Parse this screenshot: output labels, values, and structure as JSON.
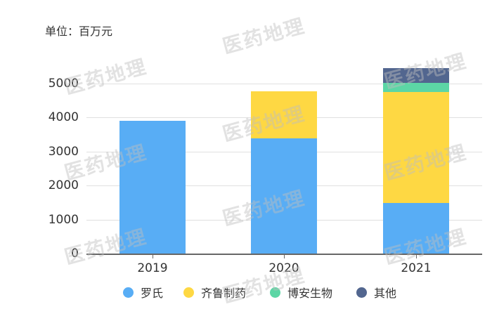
{
  "unit_label": "单位：百万元",
  "watermark": "医药地理",
  "y_ticks": [
    "5000",
    "4000",
    "3000",
    "2000",
    "1000",
    "0"
  ],
  "legend": [
    {
      "name": "罗氏",
      "color": "#58adf5"
    },
    {
      "name": "齐鲁制药",
      "color": "#fed843"
    },
    {
      "name": "博安生物",
      "color": "#5cd6a5"
    },
    {
      "name": "其他",
      "color": "#52668f"
    }
  ],
  "chart_data": {
    "type": "bar",
    "stacked": true,
    "title": "",
    "subtitle": "单位：百万元",
    "xlabel": "",
    "ylabel": "百万元",
    "categories": [
      "2019",
      "2020",
      "2021"
    ],
    "series": [
      {
        "name": "罗氏",
        "color": "#58adf5",
        "values": [
          3905,
          3390,
          1480
        ]
      },
      {
        "name": "齐鲁制药",
        "color": "#fed843",
        "values": [
          0,
          1385,
          3270
        ]
      },
      {
        "name": "博安生物",
        "color": "#5cd6a5",
        "values": [
          0,
          0,
          270
        ]
      },
      {
        "name": "其他",
        "color": "#52668f",
        "values": [
          0,
          0,
          435
        ]
      }
    ],
    "ylim": [
      0,
      5000
    ],
    "y_ticks": [
      0,
      1000,
      2000,
      3000,
      4000,
      5000
    ],
    "grid": true,
    "legend_position": "bottom"
  }
}
